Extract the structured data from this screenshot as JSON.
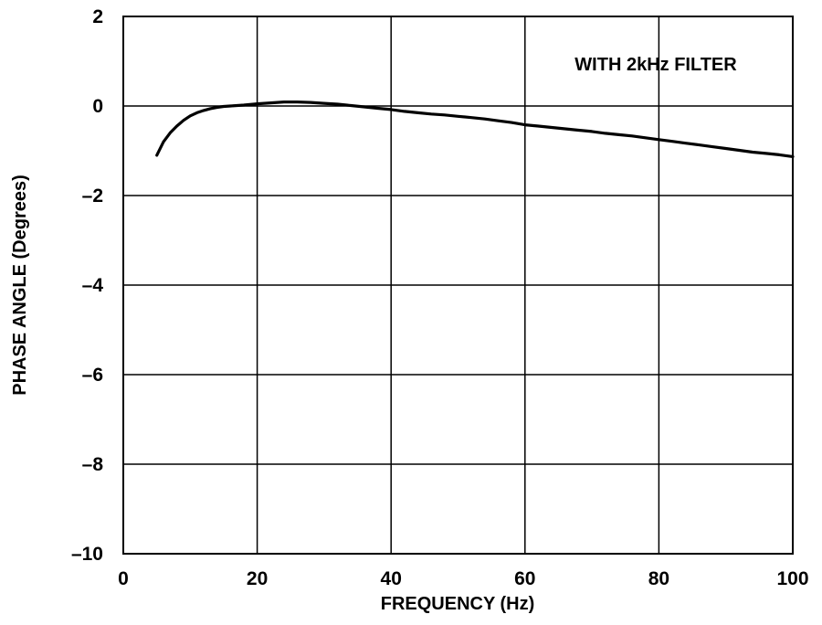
{
  "chart_data": {
    "type": "line",
    "title": "",
    "xlabel": "FREQUENCY (Hz)",
    "ylabel": "PHASE ANGLE (Degrees)",
    "xlim": [
      0,
      100
    ],
    "ylim": [
      -10,
      2
    ],
    "x_ticks": [
      0,
      20,
      40,
      60,
      80,
      100
    ],
    "x_tick_labels": [
      "0",
      "20",
      "40",
      "60",
      "80",
      "100"
    ],
    "y_ticks": [
      2,
      0,
      -2,
      -4,
      -6,
      -8,
      -10
    ],
    "y_tick_labels": [
      "2",
      "0",
      "–2",
      "–4",
      "–6",
      "–8",
      "–10"
    ],
    "grid": true,
    "annotation": "WITH 2kHz FILTER",
    "series": [
      {
        "color": "#000000",
        "x": [
          5,
          6,
          7,
          8,
          9,
          10,
          11,
          12,
          13,
          14,
          15,
          16,
          18,
          20,
          22,
          24,
          26,
          28,
          30,
          32,
          34,
          36,
          38,
          40,
          42,
          44,
          46,
          48,
          50,
          52,
          54,
          56,
          58,
          60,
          62,
          64,
          66,
          68,
          70,
          72,
          74,
          76,
          78,
          80,
          82,
          84,
          86,
          88,
          90,
          92,
          94,
          96,
          98,
          100
        ],
        "y": [
          -1.1,
          -0.8,
          -0.6,
          -0.45,
          -0.32,
          -0.22,
          -0.15,
          -0.1,
          -0.06,
          -0.03,
          -0.01,
          0.0,
          0.02,
          0.05,
          0.07,
          0.09,
          0.09,
          0.08,
          0.06,
          0.04,
          0.01,
          -0.02,
          -0.05,
          -0.08,
          -0.12,
          -0.15,
          -0.18,
          -0.2,
          -0.23,
          -0.26,
          -0.29,
          -0.33,
          -0.37,
          -0.42,
          -0.45,
          -0.48,
          -0.51,
          -0.54,
          -0.57,
          -0.61,
          -0.64,
          -0.67,
          -0.71,
          -0.75,
          -0.79,
          -0.83,
          -0.87,
          -0.91,
          -0.95,
          -0.99,
          -1.03,
          -1.06,
          -1.09,
          -1.13
        ]
      }
    ]
  }
}
